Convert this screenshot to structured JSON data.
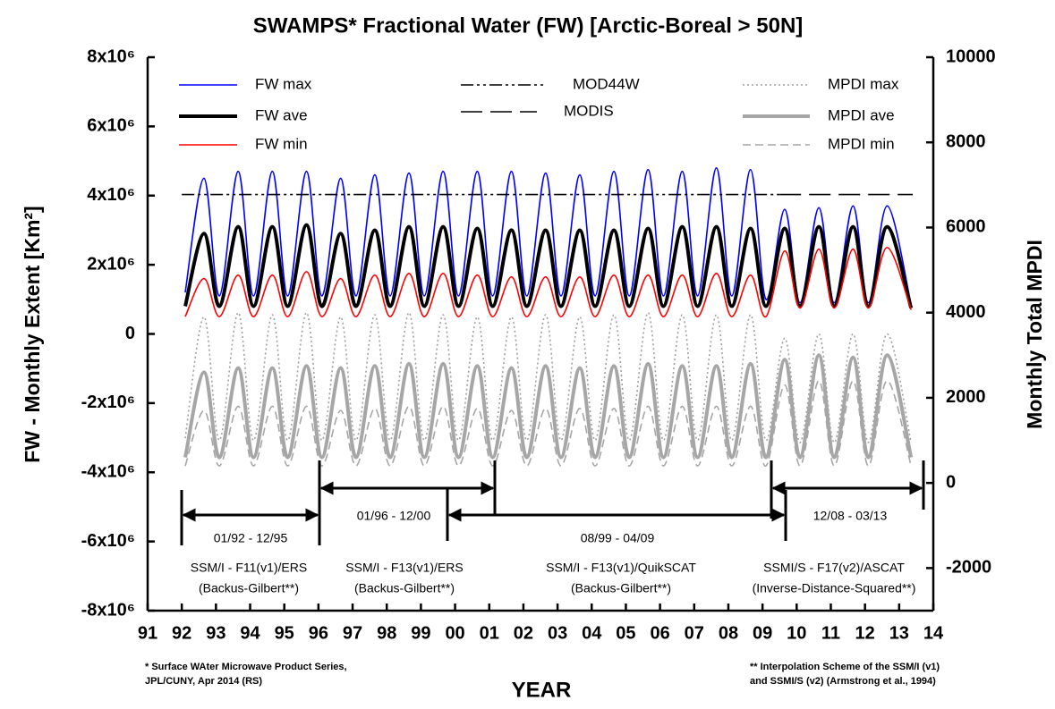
{
  "chart_data": {
    "type": "line",
    "title": "SWAMPS* Fractional Water (FW) [Arctic-Boreal > 50N]",
    "y_label": "FW - Monthly Extent [Km²]",
    "y2_label": "Monthly Total MPDI",
    "x_label": "YEAR",
    "x": [
      1992.1,
      1992.65,
      1993.1,
      1993.65,
      1994.1,
      1994.65,
      1995.1,
      1995.65,
      1996.1,
      1996.65,
      1997.1,
      1997.65,
      1998.1,
      1998.65,
      1999.1,
      1999.65,
      2000.1,
      2000.65,
      2001.1,
      2001.65,
      2002.1,
      2002.65,
      2003.1,
      2003.65,
      2004.1,
      2004.65,
      2005.1,
      2005.65,
      2006.1,
      2006.65,
      2007.1,
      2007.65,
      2008.1,
      2008.65,
      2009.1,
      2009.65,
      2010.1,
      2010.65,
      2011.1,
      2011.65,
      2012.1,
      2012.65,
      2013.35
    ],
    "xlim": [
      1991,
      2014
    ],
    "xticks": [
      {
        "value": 1991,
        "label": "91"
      },
      {
        "value": 1992,
        "label": "92"
      },
      {
        "value": 1993,
        "label": "93"
      },
      {
        "value": 1994,
        "label": "94"
      },
      {
        "value": 1995,
        "label": "95"
      },
      {
        "value": 1996,
        "label": "96"
      },
      {
        "value": 1997,
        "label": "97"
      },
      {
        "value": 1998,
        "label": "98"
      },
      {
        "value": 1999,
        "label": "99"
      },
      {
        "value": 2000,
        "label": "00"
      },
      {
        "value": 2001,
        "label": "01"
      },
      {
        "value": 2002,
        "label": "02"
      },
      {
        "value": 2003,
        "label": "03"
      },
      {
        "value": 2004,
        "label": "04"
      },
      {
        "value": 2005,
        "label": "05"
      },
      {
        "value": 2006,
        "label": "06"
      },
      {
        "value": 2007,
        "label": "07"
      },
      {
        "value": 2008,
        "label": "08"
      },
      {
        "value": 2009,
        "label": "09"
      },
      {
        "value": 2010,
        "label": "10"
      },
      {
        "value": 2011,
        "label": "11"
      },
      {
        "value": 2012,
        "label": "12"
      },
      {
        "value": 2013,
        "label": "13"
      },
      {
        "value": 2014,
        "label": "14"
      }
    ],
    "ylim": [
      -8000000.0,
      8000000.0
    ],
    "yticks": [
      {
        "value": 8000000.0,
        "label": "8x10⁶"
      },
      {
        "value": 6000000.0,
        "label": "6x10⁶"
      },
      {
        "value": 4000000.0,
        "label": "4x10⁶"
      },
      {
        "value": 2000000.0,
        "label": "2x10⁶"
      },
      0,
      {
        "value": -2000000.0,
        "label": "-2x10⁶"
      },
      {
        "value": -4000000.0,
        "label": "-4x10⁶"
      },
      {
        "value": -6000000.0,
        "label": "-6x10⁶"
      },
      {
        "value": -8000000.0,
        "label": "-8x10⁶"
      }
    ],
    "y2lim": [
      -3000,
      10000
    ],
    "y2ticks": [
      10000,
      8000,
      6000,
      4000,
      2000,
      0,
      -2000
    ],
    "grid": false,
    "series": [
      {
        "name": "FW max",
        "color": "#0000ff",
        "line_style": "solid",
        "weight": "thin",
        "values": [
          1200000.0,
          4500000.0,
          1100000.0,
          4700000.0,
          1100000.0,
          4700000.0,
          1100000.0,
          4700000.0,
          1100000.0,
          4500000.0,
          1100000.0,
          4600000.0,
          1100000.0,
          4650000.0,
          1100000.0,
          4700000.0,
          1100000.0,
          4700000.0,
          1100000.0,
          4700000.0,
          1100000.0,
          4650000.0,
          1100000.0,
          4600000.0,
          1100000.0,
          4700000.0,
          1100000.0,
          4750000.0,
          1100000.0,
          4700000.0,
          1100000.0,
          4800000.0,
          1100000.0,
          4750000.0,
          1000000.0,
          3600000.0,
          900000.0,
          3650000.0,
          900000.0,
          3700000.0,
          900000.0,
          3700000.0,
          850000.0
        ]
      },
      {
        "name": "FW ave",
        "color": "#000000",
        "line_style": "solid",
        "weight": "bold",
        "values": [
          800000.0,
          2900000.0,
          800000.0,
          3100000.0,
          800000.0,
          3100000.0,
          800000.0,
          3150000.0,
          800000.0,
          2900000.0,
          800000.0,
          3000000.0,
          800000.0,
          3100000.0,
          800000.0,
          3100000.0,
          800000.0,
          3050000.0,
          800000.0,
          3000000.0,
          800000.0,
          3000000.0,
          800000.0,
          3000000.0,
          800000.0,
          3000000.0,
          800000.0,
          3050000.0,
          800000.0,
          3100000.0,
          800000.0,
          3100000.0,
          800000.0,
          3050000.0,
          800000.0,
          3050000.0,
          800000.0,
          3100000.0,
          800000.0,
          3100000.0,
          800000.0,
          3100000.0,
          750000.0
        ]
      },
      {
        "name": "FW min",
        "color": "#ff0000",
        "line_style": "solid",
        "weight": "thin",
        "values": [
          500000.0,
          1600000.0,
          500000.0,
          1700000.0,
          500000.0,
          1700000.0,
          500000.0,
          1800000.0,
          500000.0,
          1600000.0,
          500000.0,
          1700000.0,
          500000.0,
          1750000.0,
          500000.0,
          1750000.0,
          500000.0,
          1700000.0,
          500000.0,
          1650000.0,
          500000.0,
          1650000.0,
          500000.0,
          1650000.0,
          500000.0,
          1700000.0,
          500000.0,
          1700000.0,
          500000.0,
          1700000.0,
          500000.0,
          1750000.0,
          500000.0,
          1700000.0,
          500000.0,
          2400000.0,
          750000.0,
          2450000.0,
          750000.0,
          2450000.0,
          750000.0,
          2500000.0,
          700000.0
        ]
      },
      {
        "name": "MOD44W",
        "color": "#000000",
        "line_style": "dashdot",
        "weight": "thin",
        "x": [
          1992.0,
          2009.5
        ],
        "values": [
          4030000.0,
          4030000.0
        ]
      },
      {
        "name": "MODIS",
        "color": "#000000",
        "line_style": "dash",
        "weight": "thin",
        "x": [
          2009.5,
          2013.4
        ],
        "values": [
          4030000.0,
          4030000.0
        ]
      },
      {
        "name": "MPDI max",
        "color": "#a0a0a0",
        "line_style": "dotted",
        "weight": "thin",
        "axis": "y2",
        "values": [
          1050,
          3900,
          1000,
          4000,
          1000,
          3950,
          1000,
          4000,
          1000,
          3900,
          1000,
          3950,
          1000,
          4000,
          1000,
          3950,
          1000,
          3900,
          1000,
          3900,
          1000,
          3950,
          1000,
          3900,
          1000,
          3950,
          1000,
          4000,
          1000,
          3950,
          1000,
          3950,
          1000,
          3950,
          1000,
          3400,
          950,
          3500,
          950,
          3500,
          950,
          3500,
          950
        ]
      },
      {
        "name": "MPDI ave",
        "color": "#a6a6a6",
        "line_style": "solid",
        "weight": "bold",
        "axis": "y2",
        "values": [
          600,
          2600,
          600,
          2700,
          600,
          2700,
          600,
          2750,
          600,
          2700,
          600,
          2750,
          600,
          2800,
          600,
          2800,
          600,
          2750,
          600,
          2700,
          600,
          2750,
          600,
          2700,
          600,
          2750,
          600,
          2800,
          600,
          2750,
          600,
          2750,
          600,
          2800,
          600,
          2900,
          600,
          3000,
          600,
          2950,
          600,
          3000,
          600
        ]
      },
      {
        "name": "MPDI min",
        "color": "#a6a6a6",
        "line_style": "dashed",
        "weight": "thin",
        "axis": "y2",
        "values": [
          400,
          1700,
          400,
          1800,
          400,
          1800,
          400,
          1800,
          400,
          1700,
          400,
          1750,
          400,
          1800,
          400,
          1800,
          400,
          1750,
          400,
          1700,
          400,
          1750,
          400,
          1750,
          400,
          1750,
          400,
          1800,
          400,
          1800,
          400,
          1800,
          400,
          1800,
          400,
          2300,
          400,
          2400,
          400,
          2400,
          400,
          2400,
          400
        ]
      }
    ],
    "periods": [
      {
        "range": "01/92 - 12/95",
        "sensor": "SSM/I - F11(v1)/ERS",
        "scheme": "(Backus-Gilbert**)"
      },
      {
        "range": "01/96 - 12/00",
        "sensor": "SSM/I - F13(v1)/ERS",
        "scheme": "(Backus-Gilbert**)"
      },
      {
        "range": "08/99 - 04/09",
        "sensor": "SSM/I - F13(v1)/QuikSCAT",
        "scheme": "(Backus-Gilbert**)"
      },
      {
        "range": "12/08 - 03/13",
        "sensor": "SSMI/S - F17(v2)/ASCAT",
        "scheme": "(Inverse-Distance-Squared**)"
      }
    ],
    "footnotes": [
      [
        "* Surface WAter Microwave Product Series,",
        "JPL/CUNY, Apr 2014 (RS)"
      ],
      [
        "** Interpolation Scheme of the SSM/I (v1)",
        "and SSMI/S (v2) (Armstrong et al., 1994)"
      ]
    ]
  }
}
